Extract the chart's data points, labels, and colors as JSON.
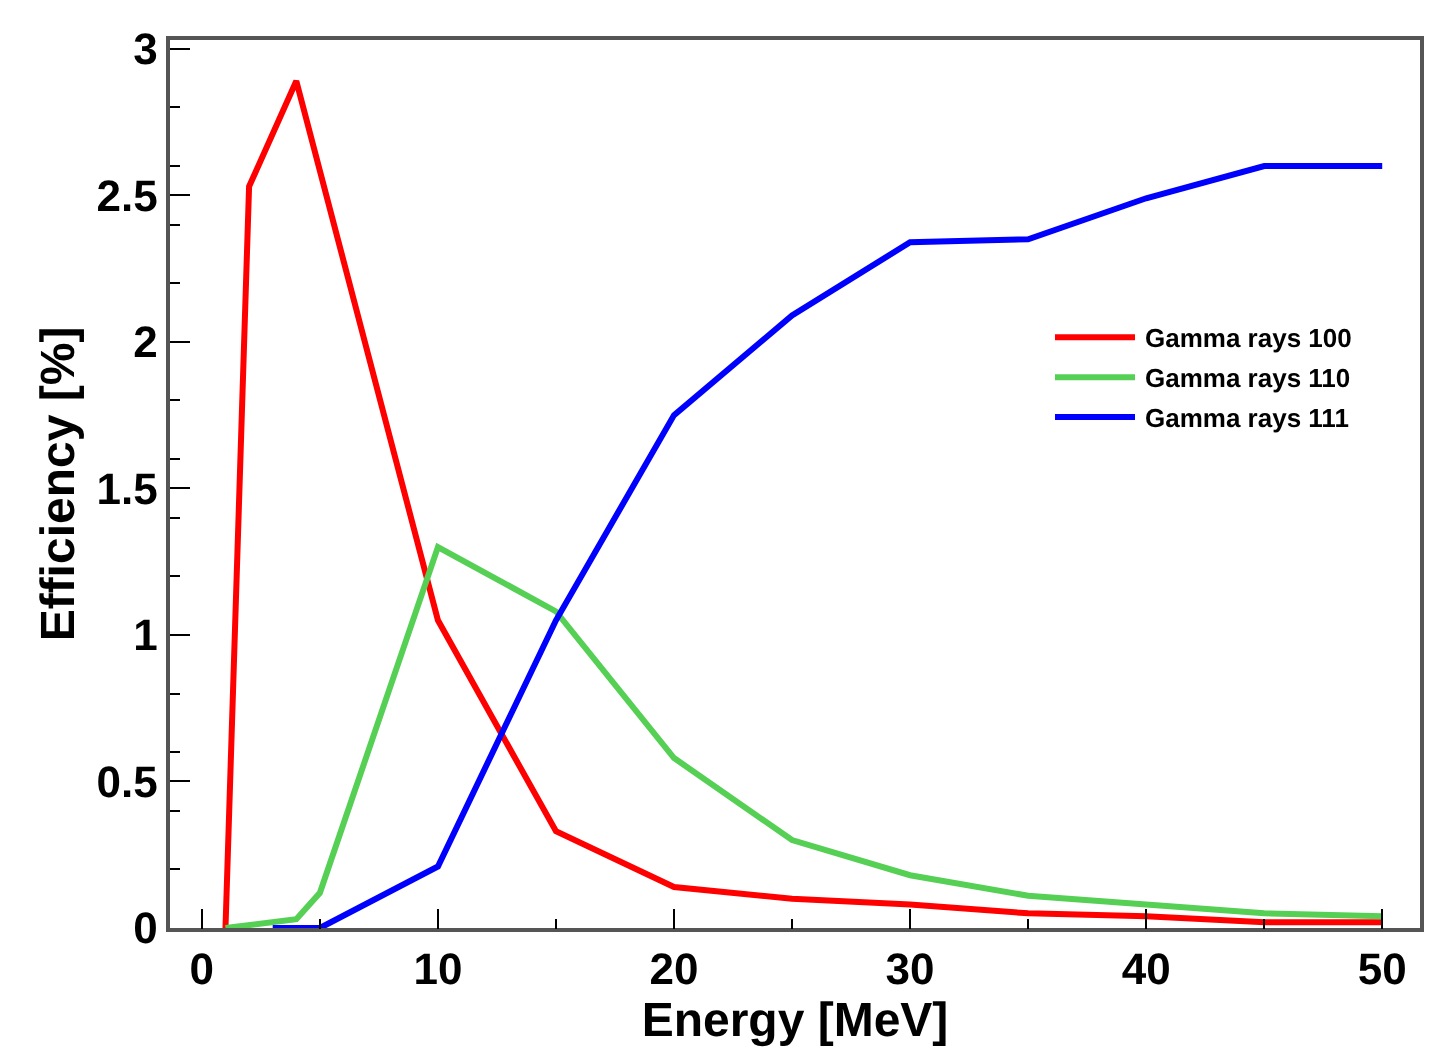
{
  "chart_data": {
    "type": "line",
    "xlabel": "Energy [MeV]",
    "ylabel": "Efficiency [%]",
    "xlim": [
      -1.35,
      51.6
    ],
    "xticks": [
      0,
      10,
      20,
      30,
      40,
      50
    ],
    "ylim": [
      0,
      3.03
    ],
    "yticks": [
      0,
      0.5,
      1,
      1.5,
      2,
      2.5,
      3
    ],
    "grid": false,
    "legend": "right",
    "marker": "none",
    "line_style": "solid",
    "series": [
      {
        "name": "Gamma rays 100",
        "color": "#ff0000",
        "x": [
          1,
          2,
          4,
          10,
          15,
          20,
          25,
          30,
          35,
          40,
          45,
          50
        ],
        "values": [
          0,
          2.53,
          2.89,
          1.05,
          0.33,
          0.14,
          0.1,
          0.08,
          0.05,
          0.04,
          0.02,
          0.02
        ]
      },
      {
        "name": "Gamma rays 110",
        "color": "#55d055",
        "x": [
          1,
          4,
          5,
          10,
          15,
          20,
          25,
          30,
          35,
          40,
          45,
          50
        ],
        "values": [
          0,
          0.03,
          0.12,
          1.3,
          1.08,
          0.58,
          0.3,
          0.18,
          0.11,
          0.08,
          0.05,
          0.04
        ]
      },
      {
        "name": "Gamma rays 111",
        "color": "#0000ff",
        "x": [
          3,
          5,
          10,
          15,
          20,
          25,
          30,
          35,
          40,
          45,
          50
        ],
        "values": [
          0,
          0,
          0.21,
          1.05,
          1.75,
          2.09,
          2.34,
          2.35,
          2.49,
          2.6,
          2.6
        ]
      }
    ]
  }
}
